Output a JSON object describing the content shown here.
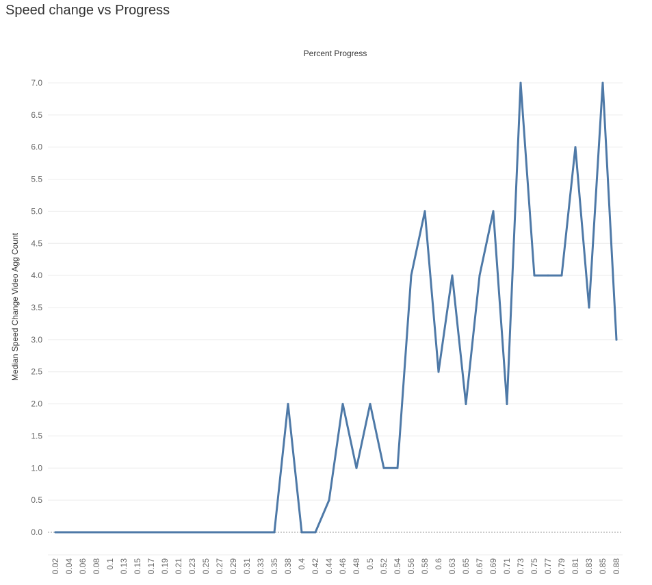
{
  "page_title": "Speed change vs Progress",
  "chart_data": {
    "type": "line",
    "title": "Speed change vs Progress",
    "xlabel": "Percent Progress",
    "ylabel": "Median Speed Change Video Agg Count",
    "ylim": [
      0,
      7.25
    ],
    "yticks": [
      "0.0",
      "0.5",
      "1.0",
      "1.5",
      "2.0",
      "2.5",
      "3.0",
      "3.5",
      "4.0",
      "4.5",
      "5.0",
      "5.5",
      "6.0",
      "6.5",
      "7.0"
    ],
    "grid": true,
    "categories": [
      "0.02",
      "0.04",
      "0.06",
      "0.08",
      "0.1",
      "0.13",
      "0.15",
      "0.17",
      "0.19",
      "0.21",
      "0.23",
      "0.25",
      "0.27",
      "0.29",
      "0.31",
      "0.33",
      "0.35",
      "0.38",
      "0.4",
      "0.42",
      "0.44",
      "0.46",
      "0.48",
      "0.5",
      "0.52",
      "0.54",
      "0.56",
      "0.58",
      "0.6",
      "0.63",
      "0.65",
      "0.67",
      "0.69",
      "0.71",
      "0.73",
      "0.75",
      "0.77",
      "0.79",
      "0.81",
      "0.83",
      "0.85",
      "0.88"
    ],
    "values": [
      0,
      0,
      0,
      0,
      0,
      0,
      0,
      0,
      0,
      0,
      0,
      0,
      0,
      0,
      0,
      0,
      0,
      2,
      0,
      0,
      0.5,
      2,
      1,
      2,
      1,
      1,
      4,
      5,
      2.5,
      4,
      2,
      4,
      5,
      2,
      7,
      4,
      4,
      4,
      6,
      3.5,
      7,
      3
    ],
    "line_color": "#4e79a7"
  }
}
